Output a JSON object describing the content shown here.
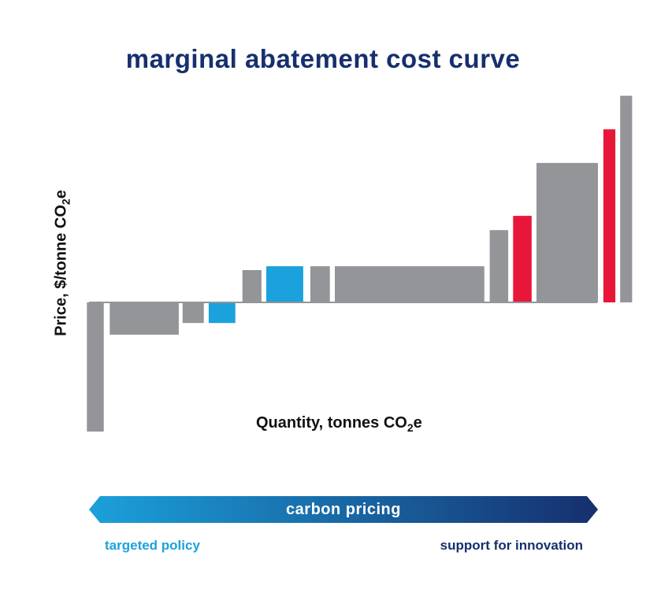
{
  "title": "marginal abatement cost curve",
  "chart_data": {
    "type": "bar",
    "variant": "marginal abatement cost curve (variable-width bars)",
    "title": "marginal abatement cost curve",
    "ylabel_main": "Price, $/tonne CO",
    "ylabel_sub": "2",
    "ylabel_tail": "e",
    "xlabel_main": "Quantity, tonnes CO",
    "xlabel_sub": "2",
    "xlabel_tail": "e",
    "xlim": [
      0,
      100
    ],
    "ylim": [
      -100,
      160
    ],
    "grid": false,
    "category_colors": {
      "standard": "#939598",
      "targeted": "#1ba1db",
      "innovation": "#e8173a"
    },
    "bars": [
      {
        "x_start": 1.5,
        "x_end": 4.6,
        "value": -100,
        "category": "standard"
      },
      {
        "x_start": 5.7,
        "x_end": 18.4,
        "value": -25,
        "category": "standard"
      },
      {
        "x_start": 19.1,
        "x_end": 23.0,
        "value": -16,
        "category": "standard"
      },
      {
        "x_start": 23.9,
        "x_end": 28.8,
        "value": -16,
        "category": "targeted"
      },
      {
        "x_start": 30.1,
        "x_end": 33.6,
        "value": 25,
        "category": "standard"
      },
      {
        "x_start": 34.5,
        "x_end": 41.3,
        "value": 28,
        "category": "targeted"
      },
      {
        "x_start": 42.6,
        "x_end": 46.2,
        "value": 28,
        "category": "standard"
      },
      {
        "x_start": 47.1,
        "x_end": 74.6,
        "value": 28,
        "category": "standard"
      },
      {
        "x_start": 75.6,
        "x_end": 79.0,
        "value": 56,
        "category": "standard"
      },
      {
        "x_start": 79.9,
        "x_end": 83.3,
        "value": 67,
        "category": "innovation"
      },
      {
        "x_start": 84.2,
        "x_end": 95.5,
        "value": 108,
        "category": "standard"
      },
      {
        "x_start": 96.5,
        "x_end": 98.7,
        "value": 134,
        "category": "innovation"
      },
      {
        "x_start": 99.6,
        "x_end": 101.8,
        "value": 160,
        "category": "standard"
      }
    ]
  },
  "policy_arrow": {
    "label": "carbon pricing",
    "left_label": "targeted policy",
    "right_label": "support for innovation",
    "left_color": "#1ba1db",
    "right_color": "#162f6e"
  }
}
